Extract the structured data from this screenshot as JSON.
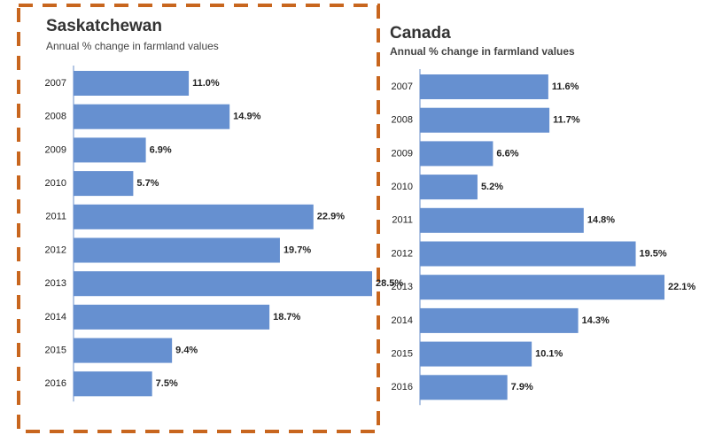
{
  "chart_data": [
    {
      "type": "bar",
      "orientation": "horizontal",
      "title": "Saskatchewan",
      "subtitle": "Annual % change in farmland values",
      "categories": [
        "2007",
        "2008",
        "2009",
        "2010",
        "2011",
        "2012",
        "2013",
        "2014",
        "2015",
        "2016"
      ],
      "values": [
        11.0,
        14.9,
        6.9,
        5.7,
        22.9,
        19.7,
        28.5,
        18.7,
        9.4,
        7.5
      ],
      "value_labels": [
        "11.0%",
        "14.9%",
        "6.9%",
        "5.7%",
        "22.9%",
        "19.7%",
        "28.5%",
        "18.7%",
        "9.4%",
        "7.5%"
      ],
      "color": "#6690d0"
    },
    {
      "type": "bar",
      "orientation": "horizontal",
      "title": "Canada",
      "subtitle": "Annual % change in farmland values",
      "categories": [
        "2007",
        "2008",
        "2009",
        "2010",
        "2011",
        "2012",
        "2013",
        "2014",
        "2015",
        "2016"
      ],
      "values": [
        11.6,
        11.7,
        6.6,
        5.2,
        14.8,
        19.5,
        22.1,
        14.3,
        10.1,
        7.9
      ],
      "value_labels": [
        "11.6%",
        "11.7%",
        "6.6%",
        "5.2%",
        "14.8%",
        "19.5%",
        "22.1%",
        "14.3%",
        "10.1%",
        "7.9%"
      ],
      "color": "#6690d0"
    }
  ]
}
